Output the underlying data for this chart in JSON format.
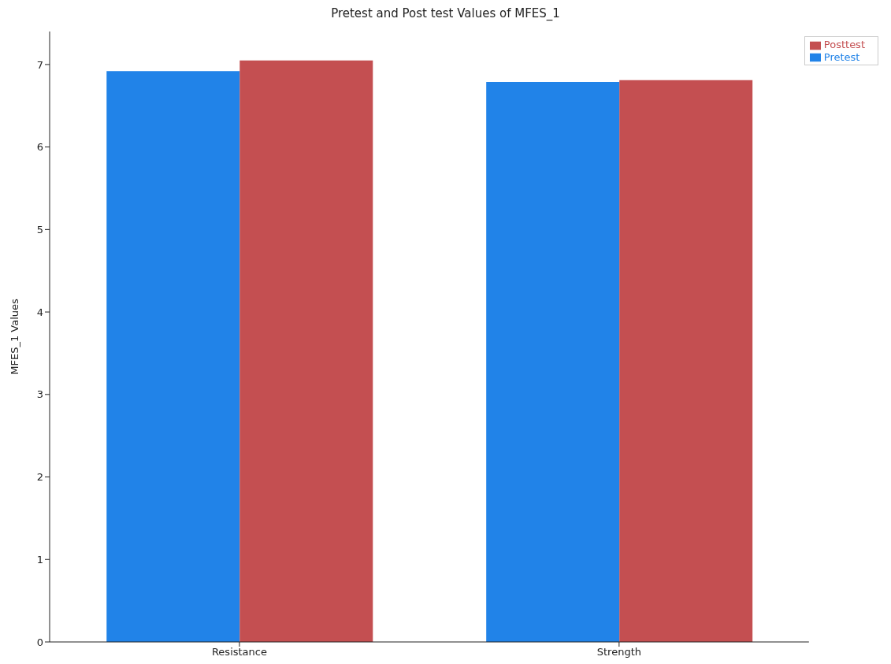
{
  "chart_data": {
    "type": "bar",
    "title": "Pretest and Post test Values of MFES_1",
    "ylabel": "MFES_1 Values",
    "categories": [
      "Resistance",
      "Strength"
    ],
    "series": [
      {
        "name": "Pretest",
        "color": "#2183e8",
        "values": [
          6.92,
          6.79
        ]
      },
      {
        "name": "Posttest",
        "color": "#c44f51",
        "values": [
          7.05,
          6.81
        ]
      }
    ],
    "ylim": [
      0,
      7.4
    ],
    "yticks": [
      0,
      1,
      2,
      3,
      4,
      5,
      6,
      7
    ],
    "grid": false,
    "legend": "top right"
  }
}
